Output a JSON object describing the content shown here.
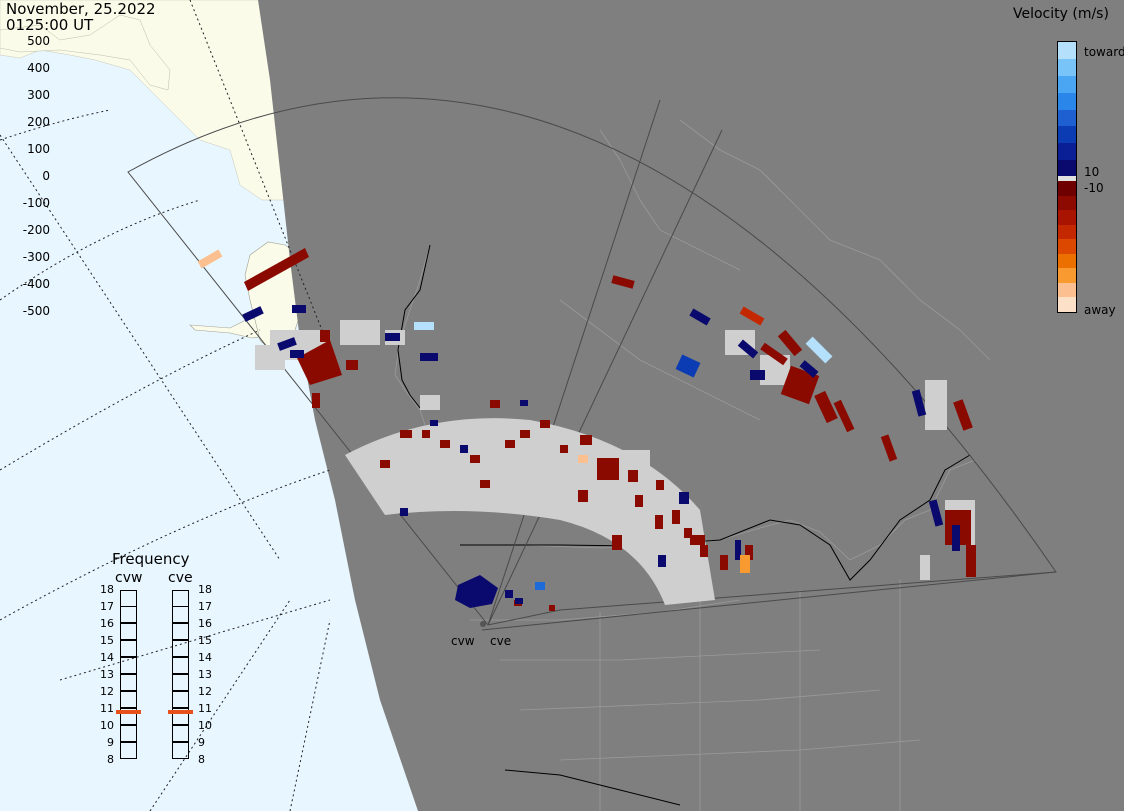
{
  "header": {
    "date": "November, 25.2022",
    "time": "0125:00 UT"
  },
  "colorbar": {
    "title": "Velocity (m/s)",
    "ticks": [
      "500",
      "400",
      "300",
      "200",
      "100",
      "10",
      "0",
      "-10",
      "-100",
      "-200",
      "-300",
      "-400",
      "-500"
    ],
    "toward_label": "toward",
    "away_label": "away",
    "positive_colors": [
      "#0a0a6e",
      "#0a1e96",
      "#0c3cb4",
      "#1e5fd2",
      "#2a86e8",
      "#4aa6f2",
      "#78c4f8",
      "#b4e0fc"
    ],
    "negative_colors": [
      "#6e0000",
      "#8c0a00",
      "#a81400",
      "#c42800",
      "#dc4800",
      "#ec7000",
      "#f89a30",
      "#fcc090",
      "#fde0c8"
    ]
  },
  "frequency": {
    "title": "Frequency",
    "radars": [
      {
        "name": "cvw",
        "current_mhz": 10.8
      },
      {
        "name": "cve",
        "current_mhz": 10.8
      }
    ],
    "scale": [
      "18",
      "17",
      "16",
      "15",
      "14",
      "13",
      "12",
      "11",
      "10",
      "9",
      "8"
    ],
    "marker_color": "#e8501a"
  },
  "sites": [
    {
      "name": "cvw"
    },
    {
      "name": "cve"
    }
  ],
  "colors": {
    "land": "#7f7f7f",
    "ocean_night": "#e8f6ff",
    "land_day": "#fbfbea",
    "boundaries": "#9a9a9a",
    "ground_scatter": "#cfcfcf",
    "fov_outline": "#4a4a4a"
  }
}
